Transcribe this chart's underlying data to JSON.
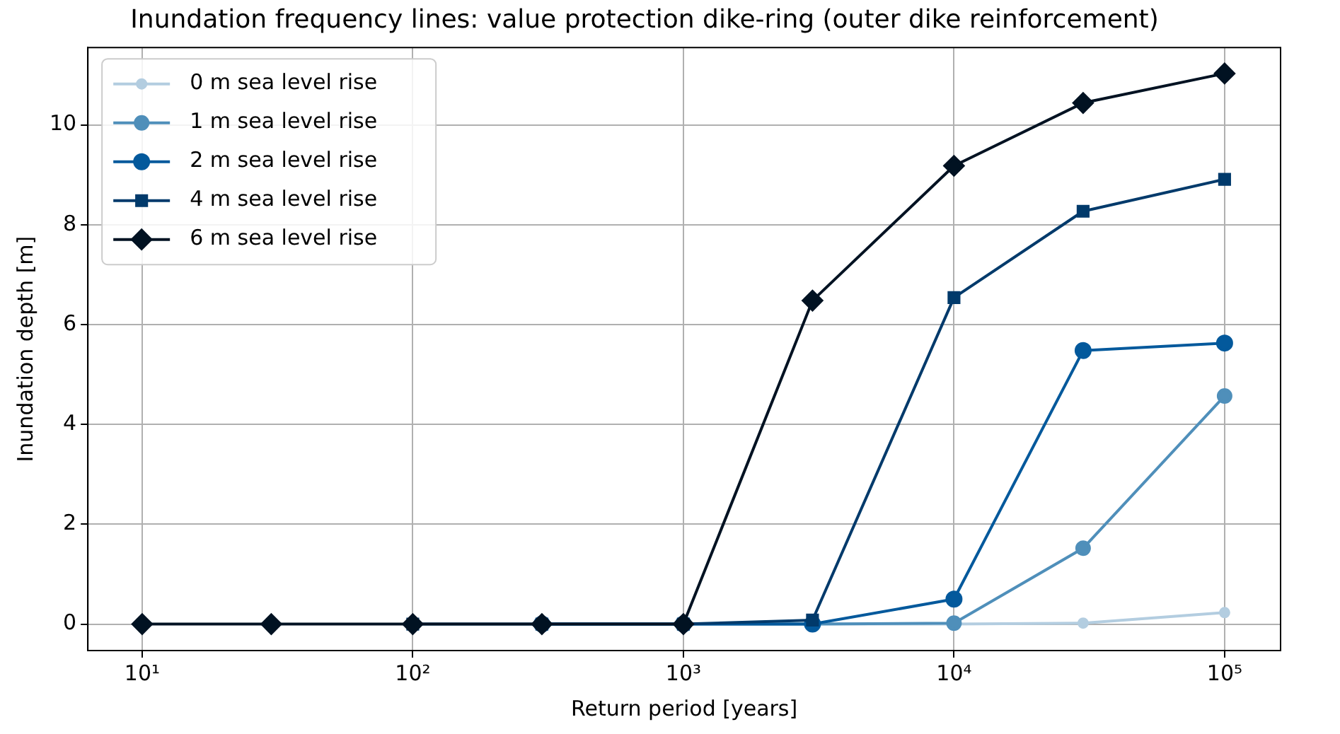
{
  "chart_data": {
    "type": "line",
    "title": "Inundation frequency lines: value protection dike-ring (outer dike reinforcement)",
    "xlabel": "Return period [years]",
    "ylabel": "Inundation depth [m]",
    "x": [
      10,
      30,
      100,
      300,
      1000,
      3000,
      10000,
      30000,
      100000
    ],
    "series": [
      {
        "name": "0 m sea level rise",
        "color": "#b3cde0",
        "marker": "circle",
        "values": [
          null,
          null,
          null,
          0,
          0,
          0,
          0,
          0.02,
          0.23
        ]
      },
      {
        "name": "1 m sea level rise",
        "color": "#4f8fba",
        "marker": "circle",
        "values": [
          null,
          null,
          null,
          0,
          0,
          0,
          0.02,
          1.52,
          4.57
        ]
      },
      {
        "name": "2 m sea level rise",
        "color": "#03599c",
        "marker": "circle",
        "values": [
          null,
          null,
          null,
          0,
          0,
          0,
          0.5,
          5.48,
          5.63
        ]
      },
      {
        "name": "4 m sea level rise",
        "color": "#013a6b",
        "marker": "square",
        "values": [
          null,
          null,
          0,
          0,
          0,
          0.08,
          6.54,
          8.27,
          8.91
        ]
      },
      {
        "name": "6 m sea level rise",
        "color": "#011222",
        "marker": "diamond",
        "values": [
          0,
          0,
          0,
          0,
          0,
          6.48,
          9.18,
          10.44,
          11.03
        ]
      }
    ],
    "log": "x",
    "xlim": [
      6.3,
      161000
    ],
    "xticks": [
      {
        "value": 10,
        "label": "10¹"
      },
      {
        "value": 100,
        "label": "10²"
      },
      {
        "value": 1000,
        "label": "10³"
      },
      {
        "value": 10000,
        "label": "10⁴"
      },
      {
        "value": 100000,
        "label": "10⁵"
      }
    ],
    "ylim": [
      -0.53,
      11.55
    ],
    "yticks": [
      0,
      2,
      4,
      6,
      8,
      10
    ],
    "grid": true,
    "legend": "top left",
    "line_style": "solid"
  }
}
